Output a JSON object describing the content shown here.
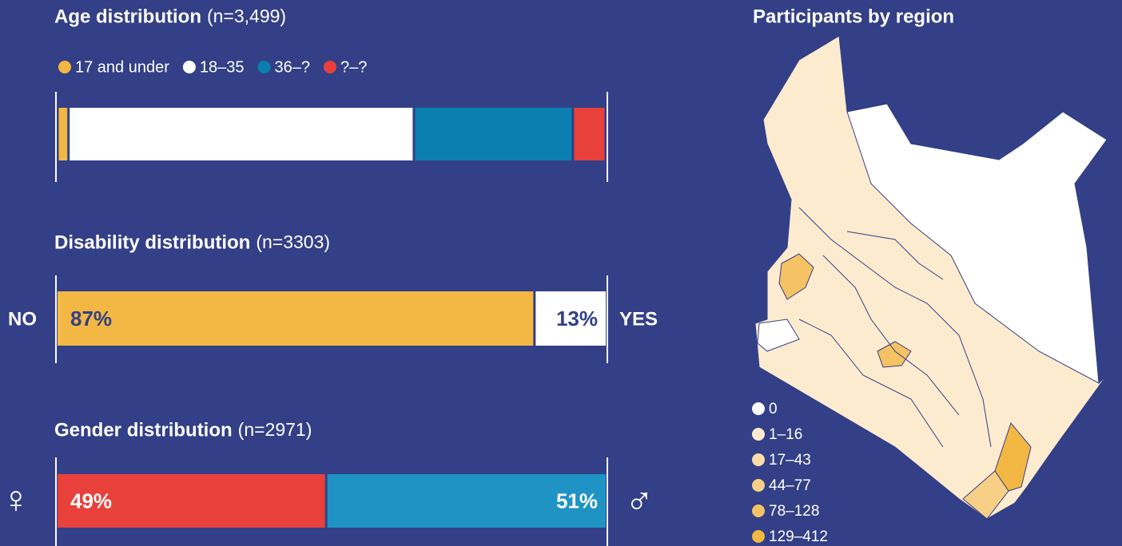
{
  "chart_data": [
    {
      "type": "stacked-bar",
      "title": "Age distribution",
      "subtitle": "(n=3,499)",
      "xlim": [
        0,
        100
      ],
      "series": [
        {
          "name": "17 and under",
          "color": "#f3b843",
          "values": [
            2
          ]
        },
        {
          "name": "18–35",
          "color": "#ffffff",
          "values": [
            63
          ]
        },
        {
          "name": "36–?",
          "color": "#0a7fb0",
          "values": [
            29
          ]
        },
        {
          "name": "?–?",
          "color": "#e8403a",
          "values": [
            6
          ]
        }
      ]
    },
    {
      "type": "split-bar",
      "title": "Disability distribution",
      "subtitle": "(n=3303)",
      "xlim": [
        0,
        100
      ],
      "categories": [
        "NO",
        "YES"
      ],
      "values": [
        87,
        13
      ],
      "value_labels": [
        "87%",
        "13%"
      ],
      "colors": [
        "#f3b843",
        "#ffffff"
      ],
      "label_color": "#333f86"
    },
    {
      "type": "split-bar",
      "title": "Gender distribution",
      "subtitle": "(n=2971)",
      "xlim": [
        0,
        100
      ],
      "categories": [
        "♀",
        "♂"
      ],
      "values": [
        49,
        51
      ],
      "value_labels": [
        "49%",
        "51%"
      ],
      "colors": [
        "#e8403a",
        "#1f94c4"
      ],
      "label_color": "#ffffff"
    },
    {
      "type": "choropleth",
      "title": "Participants by region",
      "legend": [
        {
          "label": "0",
          "color": "#ffffff"
        },
        {
          "label": "1–16",
          "color": "#fdebd0"
        },
        {
          "label": "17–43",
          "color": "#fbdcaa"
        },
        {
          "label": "44–77",
          "color": "#f8cf86"
        },
        {
          "label": "78–128",
          "color": "#f5c264"
        },
        {
          "label": "129–412",
          "color": "#f3b843"
        }
      ]
    }
  ]
}
